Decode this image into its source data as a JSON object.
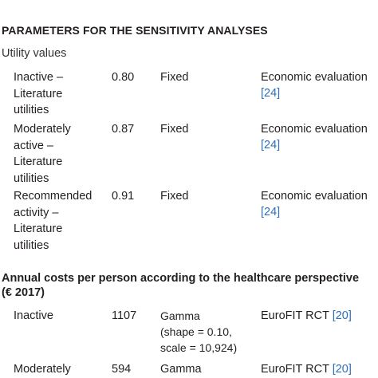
{
  "section1": {
    "title": "PARAMETERS FOR THE SENSITIVITY ANALYSES",
    "subheading": "Utility values",
    "rows": [
      {
        "label": "Inactive –\nLiterature\nutilities",
        "value": "0.80",
        "distribution": "Fixed",
        "source": "Economic evaluation",
        "ref": "[24]"
      },
      {
        "label": "Moderately\nactive –\nLiterature\nutilities",
        "value": "0.87",
        "distribution": "Fixed",
        "source": "Economic evaluation",
        "ref": "[24]"
      },
      {
        "label": "Recommended\nactivity –\nLiterature\nutilities",
        "value": "0.91",
        "distribution": "Fixed",
        "source": "Economic evaluation",
        "ref": "[24]"
      }
    ]
  },
  "section2": {
    "title_line1": "Annual costs per person according to the healthcare perspective",
    "title_line2": "(€ 2017)",
    "rows": [
      {
        "label": "Inactive",
        "value": "1107",
        "distribution": "Gamma\n(shape = 0.10,\nscale = 10,924)",
        "source": "EuroFIT RCT",
        "ref": "[20]"
      },
      {
        "label": "Moderately",
        "value": "594",
        "distribution": "Gamma",
        "source": "EuroFIT RCT",
        "ref": "[20]"
      }
    ]
  }
}
